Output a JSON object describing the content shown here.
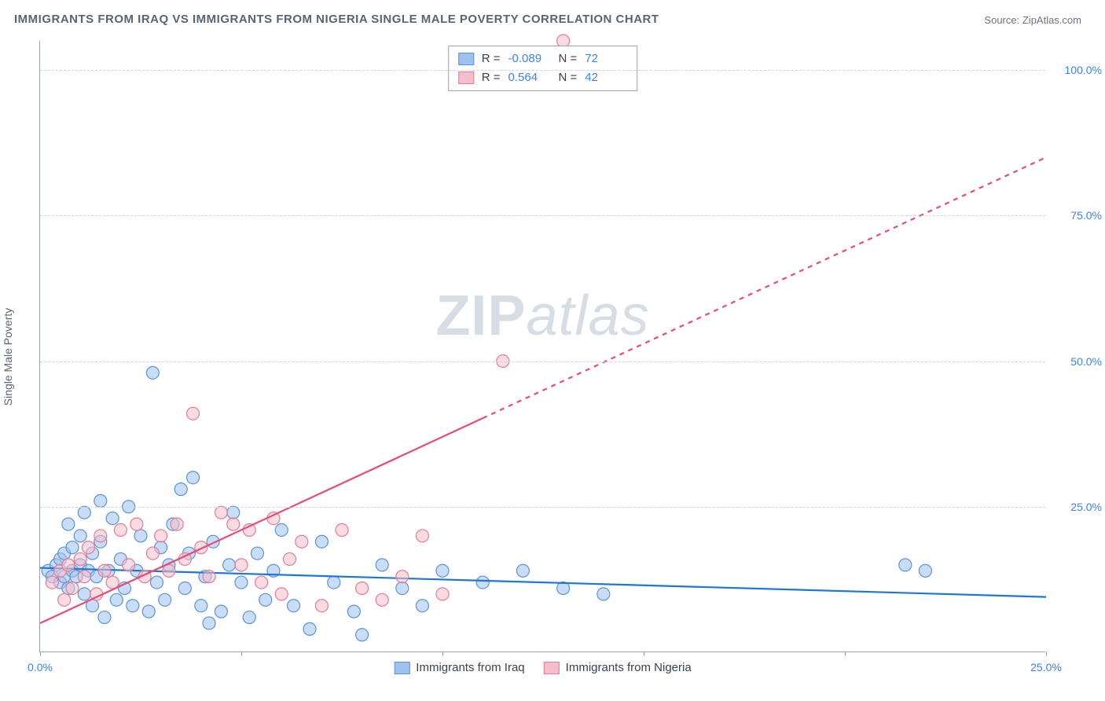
{
  "title": "IMMIGRANTS FROM IRAQ VS IMMIGRANTS FROM NIGERIA SINGLE MALE POVERTY CORRELATION CHART",
  "source_label": "Source:",
  "source_value": "ZipAtlas.com",
  "y_axis_label": "Single Male Poverty",
  "watermark_a": "ZIP",
  "watermark_b": "atlas",
  "chart": {
    "type": "scatter",
    "xlim": [
      0,
      25
    ],
    "ylim": [
      0,
      105
    ],
    "x_ticks": [
      0,
      5,
      10,
      15,
      20,
      25
    ],
    "x_tick_labels": {
      "0": "0.0%",
      "25": "25.0%"
    },
    "y_gridlines": [
      25,
      50,
      75,
      100
    ],
    "y_tick_labels": {
      "25": "25.0%",
      "50": "50.0%",
      "75": "75.0%",
      "100": "100.0%"
    },
    "grid_color": "#d1d5db",
    "axis_color": "#9aa3af",
    "background_color": "#ffffff",
    "marker_radius": 8,
    "marker_opacity": 0.55,
    "series": [
      {
        "name": "Immigrants from Iraq",
        "color_fill": "#9ec1ee",
        "color_stroke": "#5b94d6",
        "r": -0.089,
        "n": 72,
        "trend": {
          "x1": 0,
          "y1": 14.5,
          "x2": 25,
          "y2": 9.5,
          "dash": false,
          "color": "#1f77d4",
          "width": 2.2
        },
        "points": [
          [
            0.2,
            14
          ],
          [
            0.3,
            13
          ],
          [
            0.4,
            15
          ],
          [
            0.5,
            12
          ],
          [
            0.5,
            16
          ],
          [
            0.6,
            13
          ],
          [
            0.6,
            17
          ],
          [
            0.7,
            22
          ],
          [
            0.7,
            11
          ],
          [
            0.8,
            14
          ],
          [
            0.8,
            18
          ],
          [
            0.9,
            13
          ],
          [
            1.0,
            15
          ],
          [
            1.0,
            20
          ],
          [
            1.1,
            10
          ],
          [
            1.1,
            24
          ],
          [
            1.2,
            14
          ],
          [
            1.3,
            8
          ],
          [
            1.3,
            17
          ],
          [
            1.4,
            13
          ],
          [
            1.5,
            19
          ],
          [
            1.5,
            26
          ],
          [
            1.6,
            6
          ],
          [
            1.7,
            14
          ],
          [
            1.8,
            23
          ],
          [
            1.9,
            9
          ],
          [
            2.0,
            16
          ],
          [
            2.1,
            11
          ],
          [
            2.2,
            25
          ],
          [
            2.3,
            8
          ],
          [
            2.4,
            14
          ],
          [
            2.5,
            20
          ],
          [
            2.7,
            7
          ],
          [
            2.8,
            48
          ],
          [
            2.9,
            12
          ],
          [
            3.0,
            18
          ],
          [
            3.1,
            9
          ],
          [
            3.2,
            15
          ],
          [
            3.3,
            22
          ],
          [
            3.5,
            28
          ],
          [
            3.6,
            11
          ],
          [
            3.7,
            17
          ],
          [
            3.8,
            30
          ],
          [
            4.0,
            8
          ],
          [
            4.1,
            13
          ],
          [
            4.3,
            19
          ],
          [
            4.5,
            7
          ],
          [
            4.7,
            15
          ],
          [
            4.8,
            24
          ],
          [
            5.0,
            12
          ],
          [
            5.2,
            6
          ],
          [
            5.4,
            17
          ],
          [
            5.6,
            9
          ],
          [
            5.8,
            14
          ],
          [
            6.0,
            21
          ],
          [
            6.3,
            8
          ],
          [
            6.7,
            4
          ],
          [
            7.0,
            19
          ],
          [
            7.3,
            12
          ],
          [
            7.8,
            7
          ],
          [
            8.0,
            3
          ],
          [
            8.5,
            15
          ],
          [
            9.0,
            11
          ],
          [
            9.5,
            8
          ],
          [
            10.0,
            14
          ],
          [
            11.0,
            12
          ],
          [
            12.0,
            14
          ],
          [
            13.0,
            11
          ],
          [
            14.0,
            10
          ],
          [
            21.5,
            15
          ],
          [
            22.0,
            14
          ],
          [
            4.2,
            5
          ]
        ]
      },
      {
        "name": "Immigrants from Nigeria",
        "color_fill": "#f4bfca",
        "color_stroke": "#e77a94",
        "r": 0.564,
        "n": 42,
        "trend": {
          "x1": 0,
          "y1": 5,
          "x2": 25,
          "y2": 85,
          "dash_from_x": 11,
          "color": "#e94b77",
          "width": 2.2
        },
        "points": [
          [
            0.3,
            12
          ],
          [
            0.5,
            14
          ],
          [
            0.6,
            9
          ],
          [
            0.7,
            15
          ],
          [
            0.8,
            11
          ],
          [
            1.0,
            16
          ],
          [
            1.1,
            13
          ],
          [
            1.2,
            18
          ],
          [
            1.4,
            10
          ],
          [
            1.5,
            20
          ],
          [
            1.6,
            14
          ],
          [
            1.8,
            12
          ],
          [
            2.0,
            21
          ],
          [
            2.2,
            15
          ],
          [
            2.4,
            22
          ],
          [
            2.6,
            13
          ],
          [
            2.8,
            17
          ],
          [
            3.0,
            20
          ],
          [
            3.2,
            14
          ],
          [
            3.4,
            22
          ],
          [
            3.6,
            16
          ],
          [
            3.8,
            41
          ],
          [
            4.0,
            18
          ],
          [
            4.2,
            13
          ],
          [
            4.5,
            24
          ],
          [
            4.8,
            22
          ],
          [
            5.0,
            15
          ],
          [
            5.2,
            21
          ],
          [
            5.5,
            12
          ],
          [
            5.8,
            23
          ],
          [
            6.0,
            10
          ],
          [
            6.5,
            19
          ],
          [
            7.0,
            8
          ],
          [
            7.5,
            21
          ],
          [
            8.0,
            11
          ],
          [
            8.5,
            9
          ],
          [
            9.0,
            13
          ],
          [
            9.5,
            20
          ],
          [
            10.0,
            10
          ],
          [
            11.5,
            50
          ],
          [
            13.0,
            105
          ],
          [
            6.2,
            16
          ]
        ]
      }
    ]
  },
  "legend_top": [
    {
      "swatch_fill": "#9ec1ee",
      "swatch_stroke": "#5b94d6",
      "r_label": "R =",
      "r_value": "-0.089",
      "n_label": "N =",
      "n_value": "72"
    },
    {
      "swatch_fill": "#f4bfca",
      "swatch_stroke": "#e77a94",
      "r_label": "R =",
      "r_value": "0.564",
      "n_label": "N =",
      "n_value": "42"
    }
  ],
  "legend_bottom": [
    {
      "swatch_fill": "#9ec1ee",
      "swatch_stroke": "#5b94d6",
      "label": "Immigrants from Iraq"
    },
    {
      "swatch_fill": "#f4bfca",
      "swatch_stroke": "#e77a94",
      "label": "Immigrants from Nigeria"
    }
  ]
}
